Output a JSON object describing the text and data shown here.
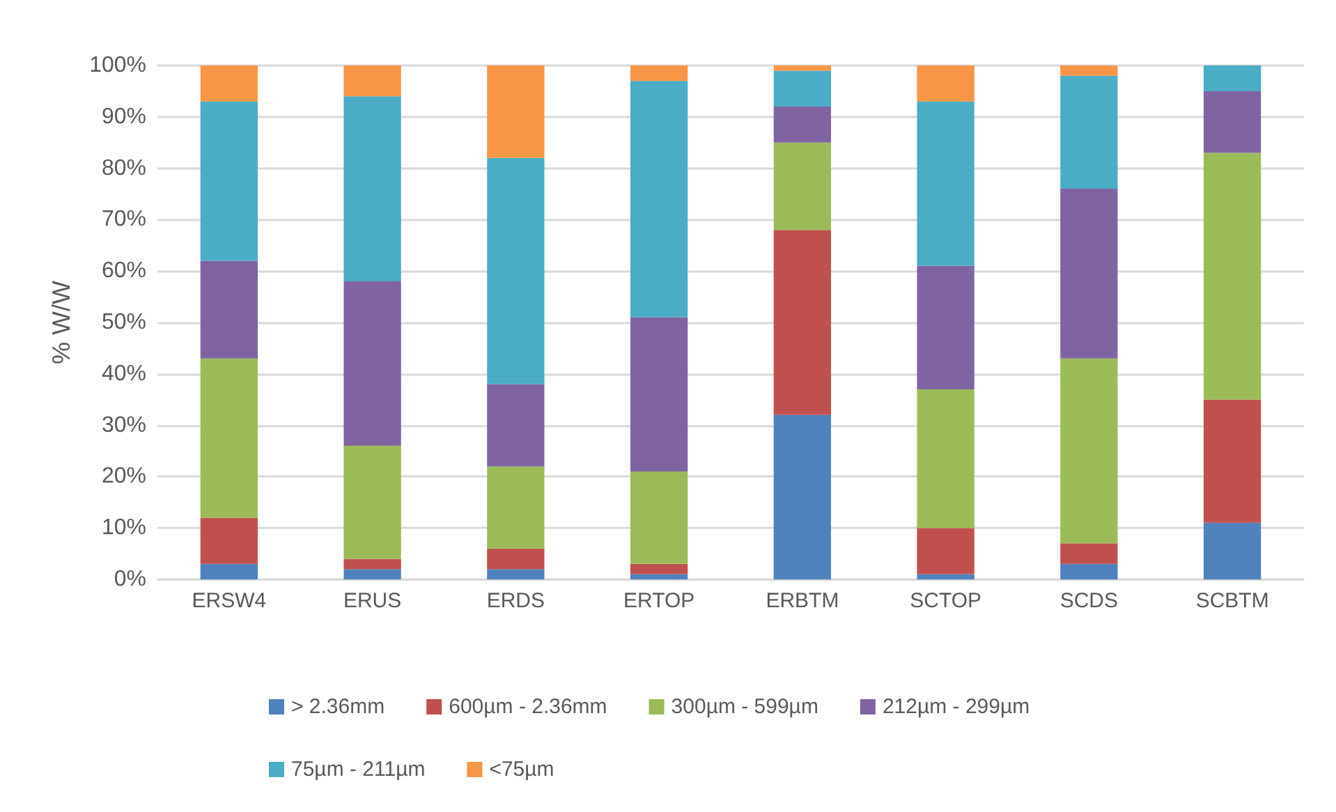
{
  "chart_data": {
    "type": "bar",
    "stacked": true,
    "ylabel": "% W/W",
    "categories": [
      "ERSW4",
      "ERUS",
      "ERDS",
      "ERTOP",
      "ERBTM",
      "SCTOP",
      "SCDS",
      "SCBTM"
    ],
    "series": [
      {
        "name": "> 2.36mm",
        "color": "#4f81bd",
        "values": [
          3,
          2,
          2,
          1,
          32,
          1,
          3,
          11
        ]
      },
      {
        "name": "600µm - 2.36mm",
        "color": "#c0504d",
        "values": [
          9,
          2,
          4,
          2,
          36,
          9,
          4,
          24
        ]
      },
      {
        "name": "300µm - 599µm",
        "color": "#9bbb59",
        "values": [
          31,
          22,
          16,
          18,
          17,
          27,
          36,
          48
        ]
      },
      {
        "name": "212µm - 299µm",
        "color": "#8064a2",
        "values": [
          19,
          32,
          16,
          30,
          7,
          24,
          33,
          12
        ]
      },
      {
        "name": "75µm - 211µm",
        "color": "#4bacc6",
        "values": [
          31,
          36,
          44,
          46,
          7,
          32,
          22,
          5
        ]
      },
      {
        "name": "<75µm",
        "color": "#f79646",
        "values": [
          7,
          6,
          18,
          3,
          1,
          7,
          2,
          0
        ]
      }
    ],
    "ylim": [
      0,
      100
    ],
    "yticks": [
      {
        "value": 0,
        "label": "0%"
      },
      {
        "value": 10,
        "label": "10%"
      },
      {
        "value": 20,
        "label": "20%"
      },
      {
        "value": 30,
        "label": "30%"
      },
      {
        "value": 40,
        "label": "40%"
      },
      {
        "value": 50,
        "label": "50%"
      },
      {
        "value": 60,
        "label": "60%"
      },
      {
        "value": 70,
        "label": "70%"
      },
      {
        "value": 80,
        "label": "80%"
      },
      {
        "value": 90,
        "label": "90%"
      },
      {
        "value": 100,
        "label": "100%"
      }
    ],
    "grid": "y",
    "legend": "bottom"
  }
}
